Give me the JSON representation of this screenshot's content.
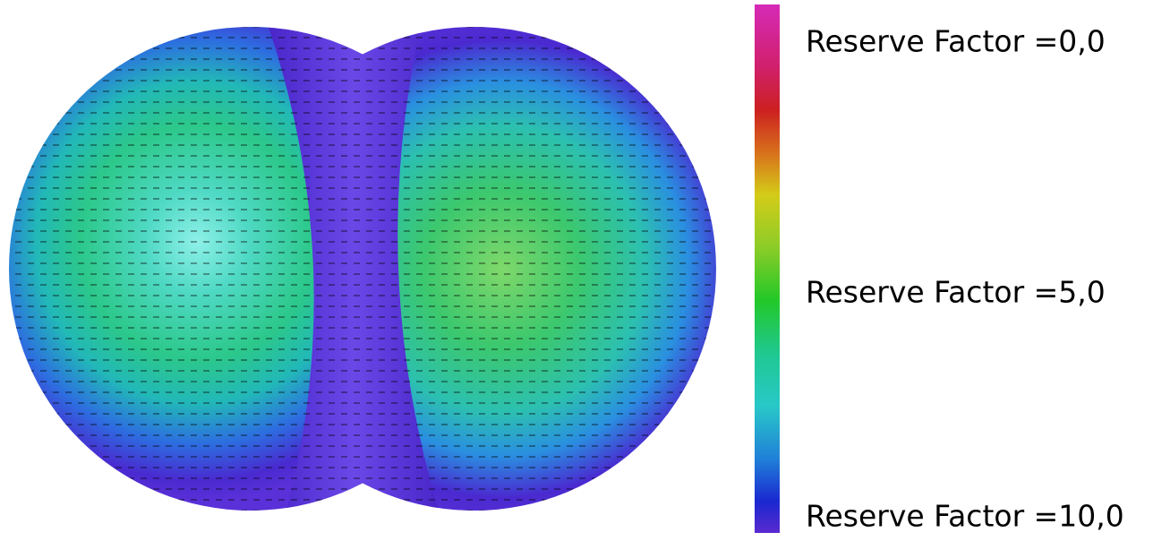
{
  "legend": {
    "labels": [
      "Reserve Factor =0,0",
      "Reserve Factor =5,0",
      "Reserve Factor =10,0"
    ]
  }
}
